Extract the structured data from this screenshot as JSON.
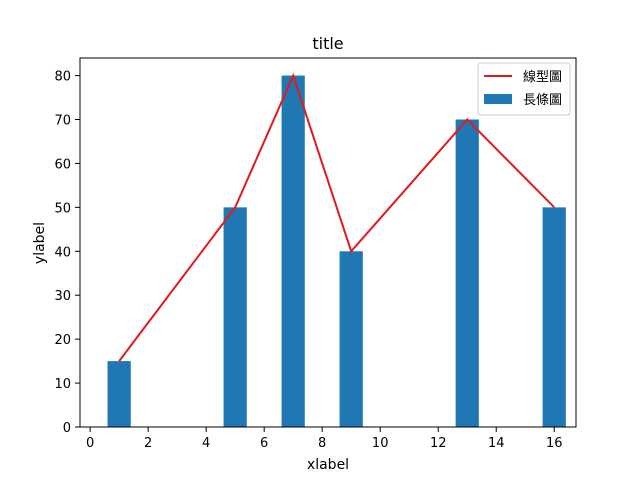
{
  "chart_data": {
    "type": "bar",
    "title": "title",
    "xlabel": "xlabel",
    "ylabel": "ylabel",
    "xlim": [
      -0.35,
      16.75
    ],
    "ylim": [
      0,
      84
    ],
    "xticks": [
      0,
      2,
      4,
      6,
      8,
      10,
      12,
      14,
      16
    ],
    "yticks": [
      0,
      10,
      20,
      30,
      40,
      50,
      60,
      70,
      80
    ],
    "grid": false,
    "legend_position": "top-right",
    "bar_series": {
      "name": "長條圖",
      "color": "#1f77b4",
      "bar_width": 0.8,
      "x": [
        1,
        5,
        7,
        9,
        13,
        16
      ],
      "values": [
        15,
        50,
        80,
        40,
        70,
        50
      ]
    },
    "line_series": {
      "name": "線型圖",
      "color": "#e31a1c",
      "x": [
        1,
        5,
        7,
        9,
        13,
        16
      ],
      "values": [
        15,
        50,
        80,
        40,
        70,
        50
      ]
    }
  }
}
